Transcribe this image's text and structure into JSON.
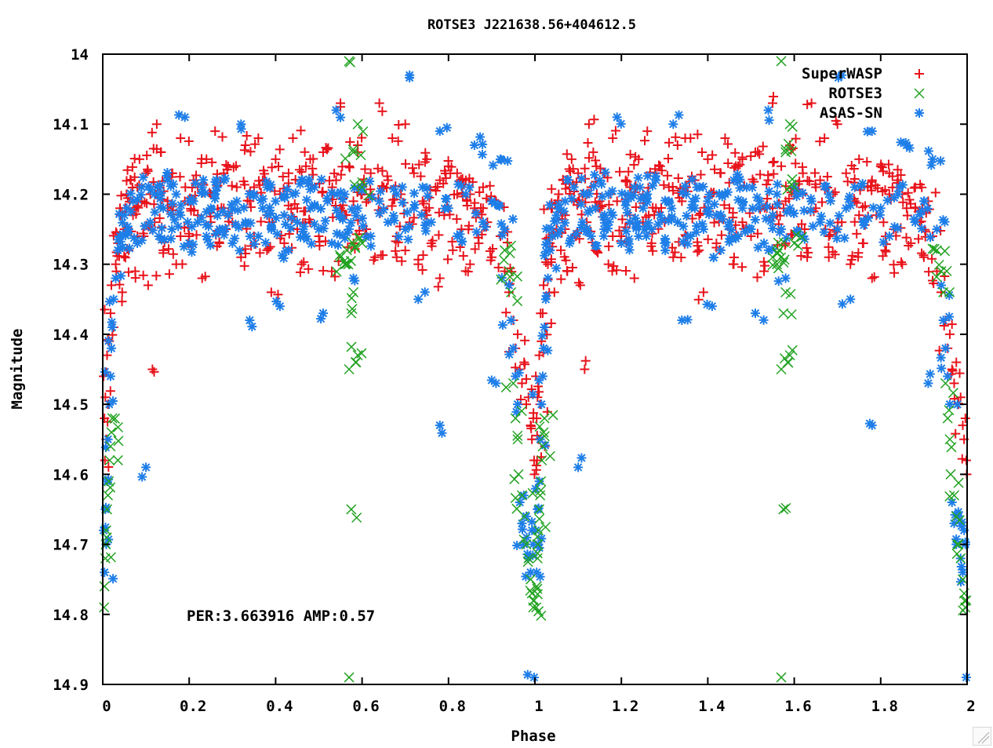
{
  "chart_data": {
    "type": "scatter",
    "title": "ROTSE3 J221638.56+404612.5",
    "xlabel": "Phase",
    "ylabel": "Magnitude",
    "xlim": [
      0,
      2
    ],
    "ylim": [
      14.9,
      14
    ],
    "y_inverted": true,
    "x_ticks": [
      "0",
      "0.2",
      "0.4",
      "0.6",
      "0.8",
      "1",
      "1.2",
      "1.4",
      "1.6",
      "1.8",
      "2"
    ],
    "x_tick_values": [
      0,
      0.2,
      0.4,
      0.6,
      0.8,
      1,
      1.2,
      1.4,
      1.6,
      1.8,
      2
    ],
    "y_ticks": [
      "14",
      "14.1",
      "14.2",
      "14.3",
      "14.4",
      "14.5",
      "14.6",
      "14.7",
      "14.8",
      "14.9"
    ],
    "y_tick_values": [
      14,
      14.1,
      14.2,
      14.3,
      14.4,
      14.5,
      14.6,
      14.7,
      14.8,
      14.9
    ],
    "grid": false,
    "legend_position": "top-right",
    "annotation": "PER:3.663916 AMP:0.57",
    "phase_folded": "points at phase p are repeated at p+1",
    "series": [
      {
        "name": "SuperWASP",
        "marker": "plus",
        "color": "#e8131b",
        "points": [
          [
            0.002,
            14.46
          ],
          [
            0.004,
            14.52
          ],
          [
            0.005,
            14.58
          ],
          [
            0.006,
            14.49
          ],
          [
            0.008,
            14.55
          ],
          [
            0.01,
            14.43
          ],
          [
            0.012,
            14.5
          ],
          [
            0.015,
            14.41
          ],
          [
            0.018,
            14.37
          ],
          [
            0.02,
            14.33
          ],
          [
            0.025,
            14.39
          ],
          [
            0.03,
            14.3
          ],
          [
            0.035,
            14.27
          ],
          [
            0.04,
            14.22
          ],
          [
            0.045,
            14.34
          ],
          [
            0.05,
            14.25
          ],
          [
            0.055,
            14.2
          ],
          [
            0.06,
            14.28
          ],
          [
            0.065,
            14.18
          ],
          [
            0.07,
            14.23
          ],
          [
            0.075,
            14.31
          ],
          [
            0.08,
            14.19
          ],
          [
            0.085,
            14.15
          ],
          [
            0.09,
            14.21
          ],
          [
            0.095,
            14.26
          ],
          [
            0.1,
            14.17
          ],
          [
            0.105,
            14.33
          ],
          [
            0.11,
            14.2
          ],
          [
            0.115,
            14.45
          ],
          [
            0.12,
            14.24
          ],
          [
            0.125,
            14.1
          ],
          [
            0.13,
            14.19
          ],
          [
            0.135,
            14.14
          ],
          [
            0.14,
            14.28
          ],
          [
            0.15,
            14.22
          ],
          [
            0.16,
            14.17
          ],
          [
            0.17,
            14.3
          ],
          [
            0.18,
            14.12
          ],
          [
            0.19,
            14.21
          ],
          [
            0.2,
            14.26
          ],
          [
            0.21,
            14.18
          ],
          [
            0.22,
            14.23
          ],
          [
            0.23,
            14.32
          ],
          [
            0.24,
            14.15
          ],
          [
            0.25,
            14.2
          ],
          [
            0.26,
            14.11
          ],
          [
            0.27,
            14.27
          ],
          [
            0.28,
            14.22
          ],
          [
            0.29,
            14.16
          ],
          [
            0.3,
            14.24
          ],
          [
            0.31,
            14.19
          ],
          [
            0.32,
            14.29
          ],
          [
            0.33,
            14.13
          ],
          [
            0.34,
            14.21
          ],
          [
            0.35,
            14.26
          ],
          [
            0.36,
            14.12
          ],
          [
            0.37,
            14.18
          ],
          [
            0.38,
            14.23
          ],
          [
            0.39,
            14.34
          ],
          [
            0.4,
            14.15
          ],
          [
            0.41,
            14.2
          ],
          [
            0.42,
            14.27
          ],
          [
            0.43,
            14.17
          ],
          [
            0.44,
            14.12
          ],
          [
            0.45,
            14.22
          ],
          [
            0.46,
            14.3
          ],
          [
            0.47,
            14.16
          ],
          [
            0.48,
            14.24
          ],
          [
            0.49,
            14.19
          ],
          [
            0.5,
            14.26
          ],
          [
            0.51,
            14.14
          ],
          [
            0.52,
            14.21
          ],
          [
            0.53,
            14.31
          ],
          [
            0.54,
            14.18
          ],
          [
            0.55,
            14.07
          ],
          [
            0.56,
            14.23
          ],
          [
            0.57,
            14.16
          ],
          [
            0.58,
            14.27
          ],
          [
            0.59,
            14.13
          ],
          [
            0.6,
            14.2
          ],
          [
            0.61,
            14.25
          ],
          [
            0.62,
            14.17
          ],
          [
            0.63,
            14.29
          ],
          [
            0.64,
            14.07
          ],
          [
            0.65,
            14.22
          ],
          [
            0.66,
            14.18
          ],
          [
            0.67,
            14.12
          ],
          [
            0.68,
            14.26
          ],
          [
            0.69,
            14.2
          ],
          [
            0.7,
            14.1
          ],
          [
            0.71,
            14.24
          ],
          [
            0.72,
            14.17
          ],
          [
            0.73,
            14.3
          ],
          [
            0.74,
            14.21
          ],
          [
            0.75,
            14.15
          ],
          [
            0.76,
            14.27
          ],
          [
            0.77,
            14.19
          ],
          [
            0.78,
            14.32
          ],
          [
            0.79,
            14.23
          ],
          [
            0.8,
            14.16
          ],
          [
            0.81,
            14.28
          ],
          [
            0.82,
            14.2
          ],
          [
            0.83,
            14.25
          ],
          [
            0.84,
            14.18
          ],
          [
            0.85,
            14.3
          ],
          [
            0.86,
            14.22
          ],
          [
            0.87,
            14.27
          ],
          [
            0.88,
            14.19
          ],
          [
            0.89,
            14.24
          ],
          [
            0.9,
            14.29
          ],
          [
            0.91,
            14.21
          ],
          [
            0.92,
            14.26
          ],
          [
            0.93,
            14.31
          ],
          [
            0.94,
            14.34
          ],
          [
            0.95,
            14.38
          ],
          [
            0.955,
            14.42
          ],
          [
            0.96,
            14.4
          ],
          [
            0.965,
            14.45
          ],
          [
            0.97,
            14.47
          ],
          [
            0.975,
            14.44
          ],
          [
            0.98,
            14.5
          ],
          [
            0.985,
            14.49
          ],
          [
            0.99,
            14.53
          ],
          [
            0.993,
            14.55
          ],
          [
            0.996,
            14.52
          ],
          [
            0.998,
            14.58
          ],
          [
            0.999,
            14.6
          ],
          [
            0.15,
            14.21
          ],
          [
            0.25,
            14.24
          ],
          [
            0.35,
            14.19
          ],
          [
            0.45,
            14.25
          ],
          [
            0.55,
            14.22
          ],
          [
            0.65,
            14.19
          ],
          [
            0.75,
            14.23
          ],
          [
            0.85,
            14.2
          ],
          [
            0.18,
            14.26
          ],
          [
            0.28,
            14.17
          ],
          [
            0.38,
            14.28
          ],
          [
            0.48,
            14.15
          ],
          [
            0.58,
            14.21
          ],
          [
            0.68,
            14.29
          ],
          [
            0.78,
            14.18
          ],
          [
            0.88,
            14.22
          ],
          [
            0.22,
            14.19
          ],
          [
            0.42,
            14.23
          ],
          [
            0.62,
            14.2
          ],
          [
            0.82,
            14.17
          ]
        ]
      },
      {
        "name": "ROTSE3",
        "marker": "cross",
        "color": "#22a322",
        "points": [
          [
            0.003,
            14.79
          ],
          [
            0.004,
            14.76
          ],
          [
            0.006,
            14.72
          ],
          [
            0.007,
            14.7
          ],
          [
            0.008,
            14.68
          ],
          [
            0.01,
            14.65
          ],
          [
            0.012,
            14.63
          ],
          [
            0.014,
            14.61
          ],
          [
            0.016,
            14.58
          ],
          [
            0.018,
            14.56
          ],
          [
            0.02,
            14.54
          ],
          [
            0.022,
            14.52
          ],
          [
            0.55,
            14.29
          ],
          [
            0.56,
            14.3
          ],
          [
            0.565,
            14.28
          ],
          [
            0.57,
            14.45
          ],
          [
            0.575,
            14.37
          ],
          [
            0.58,
            14.34
          ],
          [
            0.585,
            14.44
          ],
          [
            0.59,
            14.43
          ],
          [
            0.6,
            14.27
          ],
          [
            0.57,
            14.89
          ],
          [
            0.575,
            14.65
          ],
          [
            0.57,
            14.01
          ],
          [
            0.58,
            14.14
          ],
          [
            0.59,
            14.1
          ],
          [
            0.6,
            14.19
          ],
          [
            0.93,
            14.28
          ],
          [
            0.94,
            14.31
          ],
          [
            0.945,
            14.34
          ],
          [
            0.95,
            14.47
          ],
          [
            0.955,
            14.52
          ],
          [
            0.96,
            14.55
          ],
          [
            0.962,
            14.6
          ],
          [
            0.97,
            14.63
          ],
          [
            0.975,
            14.66
          ],
          [
            0.98,
            14.7
          ],
          [
            0.985,
            14.72
          ],
          [
            0.99,
            14.75
          ],
          [
            0.993,
            14.77
          ],
          [
            0.996,
            14.79
          ],
          [
            0.998,
            14.78
          ]
        ]
      },
      {
        "name": "ASAS-SN",
        "marker": "star",
        "color": "#1e7ee8",
        "points": [
          [
            0.002,
            14.68
          ],
          [
            0.004,
            14.74
          ],
          [
            0.006,
            14.65
          ],
          [
            0.008,
            14.7
          ],
          [
            0.01,
            14.61
          ],
          [
            0.012,
            14.55
          ],
          [
            0.015,
            14.5
          ],
          [
            0.018,
            14.46
          ],
          [
            0.02,
            14.42
          ],
          [
            0.022,
            14.39
          ],
          [
            0.025,
            14.35
          ],
          [
            0.03,
            14.32
          ],
          [
            0.035,
            14.28
          ],
          [
            0.04,
            14.26
          ],
          [
            0.05,
            14.23
          ],
          [
            0.06,
            14.25
          ],
          [
            0.07,
            14.21
          ],
          [
            0.08,
            14.27
          ],
          [
            0.09,
            14.19
          ],
          [
            0.1,
            14.59
          ],
          [
            0.11,
            14.24
          ],
          [
            0.12,
            14.2
          ],
          [
            0.13,
            14.26
          ],
          [
            0.14,
            14.22
          ],
          [
            0.15,
            14.18
          ],
          [
            0.16,
            14.25
          ],
          [
            0.17,
            14.2
          ],
          [
            0.18,
            14.23
          ],
          [
            0.19,
            14.09
          ],
          [
            0.2,
            14.27
          ],
          [
            0.21,
            14.21
          ],
          [
            0.22,
            14.24
          ],
          [
            0.23,
            14.19
          ],
          [
            0.24,
            14.26
          ],
          [
            0.25,
            14.22
          ],
          [
            0.26,
            14.2
          ],
          [
            0.27,
            14.25
          ],
          [
            0.28,
            14.18
          ],
          [
            0.29,
            14.23
          ],
          [
            0.3,
            14.27
          ],
          [
            0.31,
            14.21
          ],
          [
            0.32,
            14.1
          ],
          [
            0.33,
            14.24
          ],
          [
            0.34,
            14.38
          ],
          [
            0.35,
            14.2
          ],
          [
            0.36,
            14.26
          ],
          [
            0.37,
            14.22
          ],
          [
            0.38,
            14.19
          ],
          [
            0.39,
            14.25
          ],
          [
            0.4,
            14.21
          ],
          [
            0.41,
            14.36
          ],
          [
            0.42,
            14.23
          ],
          [
            0.43,
            14.28
          ],
          [
            0.44,
            14.2
          ],
          [
            0.45,
            14.24
          ],
          [
            0.46,
            14.18
          ],
          [
            0.47,
            14.26
          ],
          [
            0.48,
            14.22
          ],
          [
            0.49,
            14.19
          ],
          [
            0.5,
            14.25
          ],
          [
            0.51,
            14.37
          ],
          [
            0.52,
            14.21
          ],
          [
            0.53,
            14.27
          ],
          [
            0.54,
            14.08
          ],
          [
            0.55,
            14.23
          ],
          [
            0.56,
            14.2
          ],
          [
            0.57,
            14.25
          ],
          [
            0.58,
            14.32
          ],
          [
            0.59,
            14.22
          ],
          [
            0.6,
            14.19
          ],
          [
            0.62,
            14.26
          ],
          [
            0.64,
            14.21
          ],
          [
            0.66,
            14.24
          ],
          [
            0.68,
            14.2
          ],
          [
            0.7,
            14.25
          ],
          [
            0.71,
            14.03
          ],
          [
            0.72,
            14.22
          ],
          [
            0.73,
            14.35
          ],
          [
            0.74,
            14.19
          ],
          [
            0.76,
            14.24
          ],
          [
            0.78,
            14.53
          ],
          [
            0.78,
            14.11
          ],
          [
            0.8,
            14.22
          ],
          [
            0.82,
            14.26
          ],
          [
            0.84,
            14.2
          ],
          [
            0.86,
            14.13
          ],
          [
            0.88,
            14.24
          ],
          [
            0.9,
            14.21
          ],
          [
            0.91,
            14.47
          ],
          [
            0.92,
            14.15
          ],
          [
            0.93,
            14.25
          ],
          [
            0.94,
            14.33
          ],
          [
            0.945,
            14.38
          ],
          [
            0.95,
            14.42
          ],
          [
            0.955,
            14.46
          ],
          [
            0.96,
            14.5
          ],
          [
            0.965,
            14.64
          ],
          [
            0.97,
            14.67
          ],
          [
            0.975,
            14.7
          ],
          [
            0.98,
            14.66
          ],
          [
            0.985,
            14.72
          ],
          [
            0.99,
            14.74
          ],
          [
            0.993,
            14.68
          ],
          [
            0.996,
            14.7
          ],
          [
            0.998,
            14.89
          ]
        ]
      }
    ]
  }
}
